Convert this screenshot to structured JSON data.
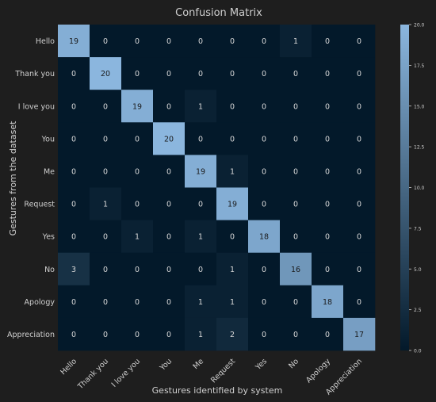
{
  "chart_data": {
    "type": "heatmap",
    "title": "Confusion Matrix",
    "xlabel": "Gestures identified by system",
    "ylabel": "Gestures from the dataset",
    "x_categories": [
      "Hello",
      "Thank you",
      "I love you",
      "You",
      "Me",
      "Request",
      "Yes",
      "No",
      "Apology",
      "Appreciation"
    ],
    "y_categories": [
      "Hello",
      "Thank you",
      "I love you",
      "You",
      "Me",
      "Request",
      "Yes",
      "No",
      "Apology",
      "Appreciation"
    ],
    "values": [
      [
        19,
        0,
        0,
        0,
        0,
        0,
        0,
        1,
        0,
        0
      ],
      [
        0,
        20,
        0,
        0,
        0,
        0,
        0,
        0,
        0,
        0
      ],
      [
        0,
        0,
        19,
        0,
        1,
        0,
        0,
        0,
        0,
        0
      ],
      [
        0,
        0,
        0,
        20,
        0,
        0,
        0,
        0,
        0,
        0
      ],
      [
        0,
        0,
        0,
        0,
        19,
        1,
        0,
        0,
        0,
        0
      ],
      [
        0,
        1,
        0,
        0,
        0,
        19,
        0,
        0,
        0,
        0
      ],
      [
        0,
        0,
        1,
        0,
        1,
        0,
        18,
        0,
        0,
        0
      ],
      [
        3,
        0,
        0,
        0,
        0,
        1,
        0,
        16,
        0,
        0
      ],
      [
        0,
        0,
        0,
        0,
        1,
        1,
        0,
        0,
        18,
        0
      ],
      [
        0,
        0,
        0,
        0,
        1,
        2,
        0,
        0,
        0,
        17
      ]
    ],
    "colorbar": {
      "range": [
        0,
        20
      ],
      "ticks": [
        "0.0",
        "2.5",
        "5.0",
        "7.5",
        "10.0",
        "12.5",
        "15.0",
        "17.5",
        "20.0"
      ],
      "colormap_low": "#03192a",
      "colormap_high": "#8bb6de"
    },
    "grid": false,
    "legend": "colorbar-right"
  }
}
